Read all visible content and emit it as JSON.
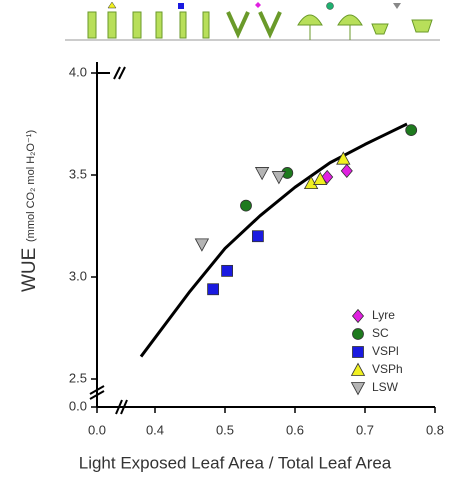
{
  "chart_data": {
    "type": "scatter",
    "x_label": "Light Exposed Leaf Area / Total Leaf Area",
    "y_label": "WUE",
    "y_label_units": "(mmol CO₂ mol H₂O⁻¹)",
    "xlim": [
      0.35,
      0.8
    ],
    "xticks": [
      {
        "value": 0,
        "label": "0.0"
      },
      0.4,
      0.5,
      0.6,
      0.7,
      0.8
    ],
    "ylim": [
      2.5,
      4
    ],
    "yticks": [
      {
        "value": 0,
        "label": "0.0"
      },
      2.5,
      {
        "value": 3,
        "label": "3.0"
      },
      3.5,
      {
        "value": 4,
        "label": "4.0"
      }
    ],
    "legend": "lower right",
    "series": [
      {
        "name": "Lyre",
        "color": "#e020e0",
        "marker": "diamond",
        "x": [
          0.646,
          0.674
        ],
        "y": [
          3.49,
          3.52
        ]
      },
      {
        "name": "SC",
        "color": "#1e7a1e",
        "marker": "circle",
        "x": [
          0.53,
          0.589,
          0.766
        ],
        "y": [
          3.35,
          3.51,
          3.72
        ]
      },
      {
        "name": "VSPl",
        "color": "#1a1ae0",
        "marker": "square",
        "x": [
          0.483,
          0.503,
          0.547
        ],
        "y": [
          2.94,
          3.03,
          3.2
        ]
      },
      {
        "name": "VSPh",
        "color": "#f0f020",
        "marker": "triangle-up",
        "x": [
          0.623,
          0.636,
          0.669
        ],
        "y": [
          3.46,
          3.48,
          3.58
        ]
      },
      {
        "name": "LSW",
        "color": "#b4b4b4",
        "marker": "triangle-down",
        "x": [
          0.467,
          0.553,
          0.577
        ],
        "y": [
          3.16,
          3.51,
          3.49
        ]
      }
    ],
    "fit": {
      "color": "#000000",
      "x": [
        0.38,
        0.45,
        0.5,
        0.55,
        0.6,
        0.65,
        0.7,
        0.76
      ],
      "y": [
        2.61,
        2.93,
        3.14,
        3.3,
        3.44,
        3.56,
        3.65,
        3.75
      ]
    }
  }
}
